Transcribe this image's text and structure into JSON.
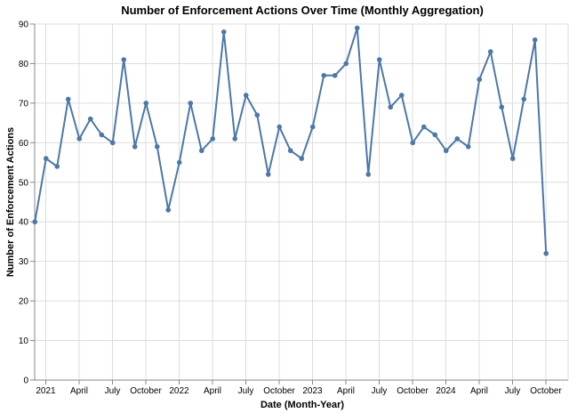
{
  "chart_data": {
    "type": "line",
    "title": "Number of Enforcement Actions Over Time (Monthly Aggregation)",
    "xlabel": "Date (Month-Year)",
    "ylabel": "Number of Enforcement Actions",
    "ylim": [
      0,
      90
    ],
    "y_ticks": [
      0,
      10,
      20,
      30,
      40,
      50,
      60,
      70,
      80,
      90
    ],
    "grid": true,
    "legend": "none",
    "x_range": [
      "2020-12",
      "2024-12"
    ],
    "x_ticks": [
      {
        "date": "2021-01",
        "label": "2021"
      },
      {
        "date": "2021-04",
        "label": "April"
      },
      {
        "date": "2021-07",
        "label": "July"
      },
      {
        "date": "2021-10",
        "label": "October"
      },
      {
        "date": "2022-01",
        "label": "2022"
      },
      {
        "date": "2022-04",
        "label": "April"
      },
      {
        "date": "2022-07",
        "label": "July"
      },
      {
        "date": "2022-10",
        "label": "October"
      },
      {
        "date": "2023-01",
        "label": "2023"
      },
      {
        "date": "2023-04",
        "label": "April"
      },
      {
        "date": "2023-07",
        "label": "July"
      },
      {
        "date": "2023-10",
        "label": "October"
      },
      {
        "date": "2024-01",
        "label": "2024"
      },
      {
        "date": "2024-04",
        "label": "April"
      },
      {
        "date": "2024-07",
        "label": "July"
      },
      {
        "date": "2024-10",
        "label": "October"
      }
    ],
    "series": [
      {
        "color": "#4c78a8",
        "x": [
          "2020-12",
          "2021-01",
          "2021-02",
          "2021-03",
          "2021-04",
          "2021-05",
          "2021-06",
          "2021-07",
          "2021-08",
          "2021-09",
          "2021-10",
          "2021-11",
          "2021-12",
          "2022-01",
          "2022-02",
          "2022-03",
          "2022-04",
          "2022-05",
          "2022-06",
          "2022-07",
          "2022-08",
          "2022-09",
          "2022-10",
          "2022-11",
          "2022-12",
          "2023-01",
          "2023-02",
          "2023-03",
          "2023-04",
          "2023-05",
          "2023-06",
          "2023-07",
          "2023-08",
          "2023-09",
          "2023-10",
          "2023-11",
          "2023-12",
          "2024-01",
          "2024-02",
          "2024-03",
          "2024-04",
          "2024-05",
          "2024-06",
          "2024-07",
          "2024-08",
          "2024-09",
          "2024-10",
          "2024-11"
        ],
        "values": [
          40,
          56,
          54,
          71,
          61,
          66,
          62,
          60,
          81,
          59,
          70,
          59,
          43,
          55,
          70,
          58,
          61,
          88,
          61,
          72,
          67,
          52,
          64,
          58,
          56,
          64,
          77,
          77,
          80,
          89,
          52,
          81,
          69,
          72,
          60,
          64,
          62,
          58,
          61,
          59,
          76,
          83,
          69,
          56,
          71,
          86,
          32,
          null
        ]
      }
    ]
  }
}
